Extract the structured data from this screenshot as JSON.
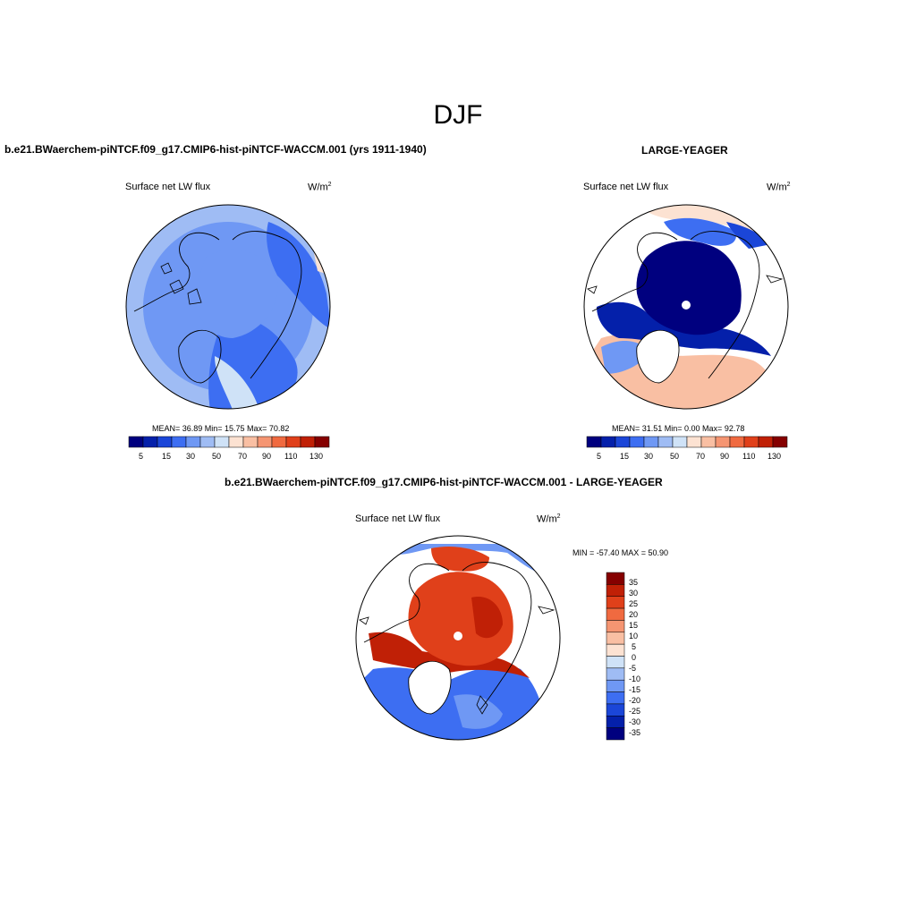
{
  "figure_title": "DJF",
  "colors": {
    "scale": [
      "#00007f",
      "#0420aa",
      "#1b46d8",
      "#3d6ef2",
      "#6f98f4",
      "#9fbcf4",
      "#cfe2f7",
      "#fce2d2",
      "#f9bfa3",
      "#f59572",
      "#f06a40",
      "#e0401a",
      "#c02006",
      "#850000"
    ],
    "diff_scale": [
      "#00007f",
      "#0420aa",
      "#1b46d8",
      "#3d6ef2",
      "#6f98f4",
      "#9fbcf4",
      "#cfe2f7",
      "#fce2d2",
      "#f9bfa3",
      "#f59572",
      "#f06a40",
      "#e0401a",
      "#c02006",
      "#850000"
    ]
  },
  "panels": [
    {
      "header": "b.e21.BWaerchem-piNTCF.f09_g17.CMIP6-hist-piNTCF-WACCM.001 (yrs 1911-1940)",
      "variable": "Surface net LW flux",
      "units": "W/m",
      "units_exp": "2",
      "stats_text": "MEAN=  36.89  Min=  15.75  Max=  70.82",
      "colorbar_ticks": [
        "5",
        "15",
        "30",
        "50",
        "70",
        "90",
        "110",
        "130"
      ]
    },
    {
      "header": "LARGE-YEAGER",
      "variable": "Surface net LW flux",
      "units": "W/m",
      "units_exp": "2",
      "stats_text": "MEAN=  31.51  Min=   0.00  Max=  92.78",
      "colorbar_ticks": [
        "5",
        "15",
        "30",
        "50",
        "70",
        "90",
        "110",
        "130"
      ]
    },
    {
      "header": "b.e21.BWaerchem-piNTCF.f09_g17.CMIP6-hist-piNTCF-WACCM.001 - LARGE-YEAGER",
      "variable": "Surface net LW flux",
      "units": "W/m",
      "units_exp": "2",
      "stats_text": "MIN = -57.40 MAX =  50.90",
      "colorbar_ticks": [
        "35",
        "30",
        "25",
        "20",
        "15",
        "10",
        "5",
        "0",
        "-5",
        "-10",
        "-15",
        "-20",
        "-25",
        "-30",
        "-35"
      ]
    }
  ]
}
